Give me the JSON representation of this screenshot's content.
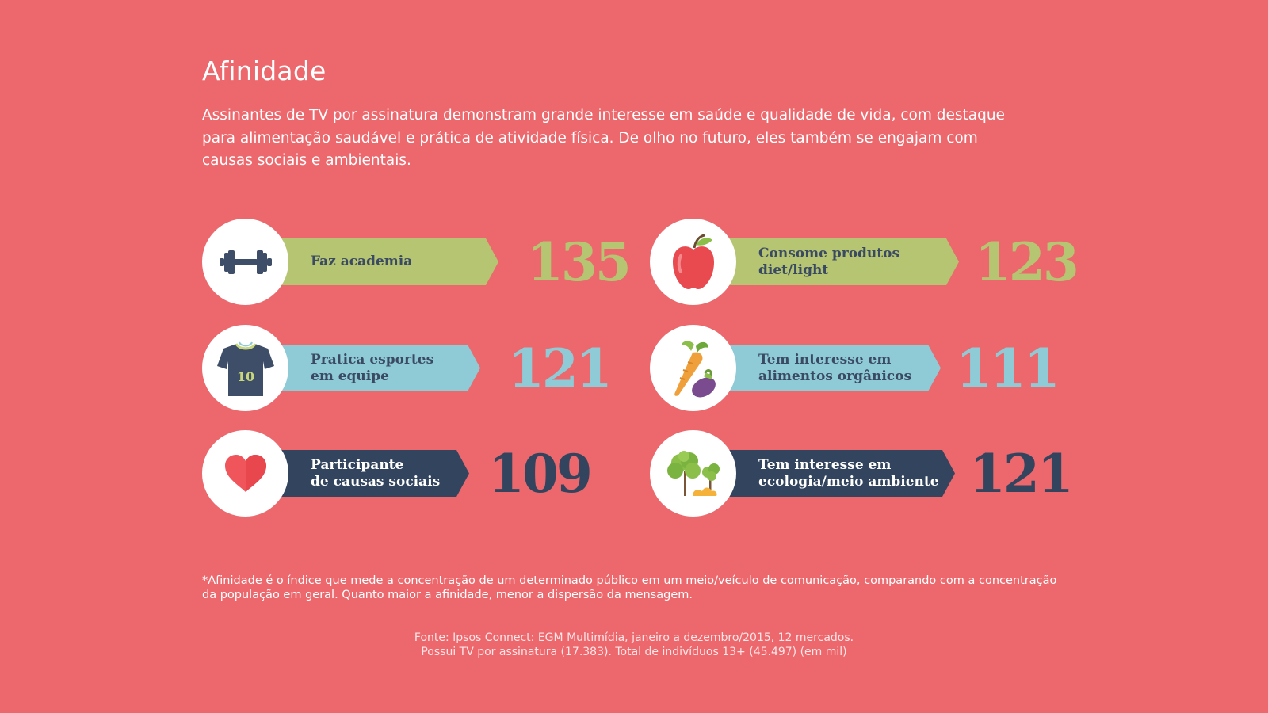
{
  "title": "Afinidade",
  "intro": "Assinantes de TV por assinatura demonstram grande interesse em saúde e qualidade de vida, com destaque para alimentação saudável e prática de atividade física. De olho no futuro, eles também se engajam com causas sociais e ambientais.",
  "chart_data": {
    "type": "table",
    "categories": [
      "Faz academia",
      "Consome produtos diet/light",
      "Pratica esportes em equipe",
      "Tem interesse em alimentos orgânicos",
      "Participante de causas sociais",
      "Tem interesse em ecologia/meio ambiente"
    ],
    "values": [
      135,
      123,
      121,
      111,
      109,
      121
    ]
  },
  "items": [
    {
      "label": "Faz academia",
      "value": "135",
      "icon": "dumbbell-icon",
      "color": "#b5c571"
    },
    {
      "label": "Consome produtos\ndiet/light",
      "value": "123",
      "icon": "apple-icon",
      "color": "#b5c571"
    },
    {
      "label": "Pratica esportes\nem equipe",
      "value": "121",
      "icon": "jersey-icon",
      "jersey_number": "10",
      "color": "#8ecbd6"
    },
    {
      "label": "Tem interesse em\nalimentos orgânicos",
      "value": "111",
      "icon": "vegetables-icon",
      "color": "#8ecbd6"
    },
    {
      "label": "Participante\nde causas sociais",
      "value": "109",
      "icon": "heart-icon",
      "color": "#33455e"
    },
    {
      "label": "Tem interesse em\necologia/meio ambiente",
      "value": "121",
      "icon": "trees-icon",
      "color": "#33455e"
    }
  ],
  "footnote": "*Afinidade é o índice que mede a concentração de um determinado público em um meio/veículo de comunicação, comparando com a concentração da população em geral. Quanto maior a afinidade, menor a dispersão da mensagem.",
  "source": {
    "line1": "Fonte: Ipsos Connect: EGM Multimídia, janeiro a dezembro/2015, 12 mercados.",
    "line2": "Possui TV por assinatura (17.383). Total de indivíduos 13+ (45.497) (em mil)"
  },
  "colors": {
    "background": "#ec686d",
    "green": "#b5c571",
    "blue": "#8ecbd6",
    "navy": "#33455e"
  }
}
